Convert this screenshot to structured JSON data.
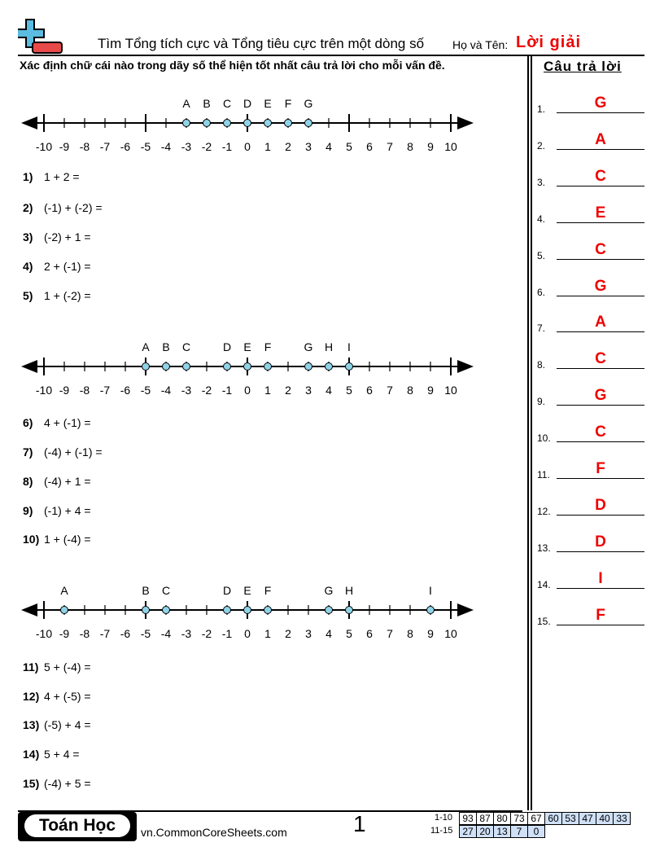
{
  "header": {
    "title": "Tìm Tổng tích cực và Tổng tiêu cực trên một dòng số",
    "name_label": "Họ và Tên:",
    "name_value": "Lời giải"
  },
  "instructions": "Xác định chữ cái nào trong dãy số thể hiện tốt nhất câu trả lời cho mỗi vấn đề.",
  "answer_header": "Câu trả lời",
  "number_lines": [
    {
      "ticks": [
        -10,
        -9,
        -8,
        -7,
        -6,
        -5,
        -4,
        -3,
        -2,
        -1,
        0,
        1,
        2,
        3,
        4,
        5,
        6,
        7,
        8,
        9,
        10
      ],
      "points": [
        {
          "label": "A",
          "value": -3
        },
        {
          "label": "B",
          "value": -2
        },
        {
          "label": "C",
          "value": -1
        },
        {
          "label": "D",
          "value": 0
        },
        {
          "label": "E",
          "value": 1
        },
        {
          "label": "F",
          "value": 2
        },
        {
          "label": "G",
          "value": 3
        }
      ]
    },
    {
      "ticks": [
        -10,
        -9,
        -8,
        -7,
        -6,
        -5,
        -4,
        -3,
        -2,
        -1,
        0,
        1,
        2,
        3,
        4,
        5,
        6,
        7,
        8,
        9,
        10
      ],
      "points": [
        {
          "label": "A",
          "value": -5
        },
        {
          "label": "B",
          "value": -4
        },
        {
          "label": "C",
          "value": -3
        },
        {
          "label": "D",
          "value": -1
        },
        {
          "label": "E",
          "value": 0
        },
        {
          "label": "F",
          "value": 1
        },
        {
          "label": "G",
          "value": 3
        },
        {
          "label": "H",
          "value": 4
        },
        {
          "label": "I",
          "value": 5
        }
      ]
    },
    {
      "ticks": [
        -10,
        -9,
        -8,
        -7,
        -6,
        -5,
        -4,
        -3,
        -2,
        -1,
        0,
        1,
        2,
        3,
        4,
        5,
        6,
        7,
        8,
        9,
        10
      ],
      "points": [
        {
          "label": "A",
          "value": -9
        },
        {
          "label": "B",
          "value": -5
        },
        {
          "label": "C",
          "value": -4
        },
        {
          "label": "D",
          "value": -1
        },
        {
          "label": "E",
          "value": 0
        },
        {
          "label": "F",
          "value": 1
        },
        {
          "label": "G",
          "value": 4
        },
        {
          "label": "H",
          "value": 5
        },
        {
          "label": "I",
          "value": 9
        }
      ]
    }
  ],
  "questions": [
    {
      "num": "1)",
      "text": "1 + 2 ="
    },
    {
      "num": "2)",
      "text": "(-1) + (-2) ="
    },
    {
      "num": "3)",
      "text": "(-2) + 1 ="
    },
    {
      "num": "4)",
      "text": "2 + (-1) ="
    },
    {
      "num": "5)",
      "text": "1 + (-2) ="
    },
    {
      "num": "6)",
      "text": "4 + (-1) ="
    },
    {
      "num": "7)",
      "text": "(-4) + (-1) ="
    },
    {
      "num": "8)",
      "text": "(-4) + 1 ="
    },
    {
      "num": "9)",
      "text": "(-1) + 4 ="
    },
    {
      "num": "10)",
      "text": "1 + (-4) ="
    },
    {
      "num": "11)",
      "text": "5 + (-4) ="
    },
    {
      "num": "12)",
      "text": "4 + (-5) ="
    },
    {
      "num": "13)",
      "text": "(-5) + 4 ="
    },
    {
      "num": "14)",
      "text": "5 + 4 ="
    },
    {
      "num": "15)",
      "text": "(-4) + 5 ="
    }
  ],
  "answers": [
    {
      "num": "1.",
      "value": "G"
    },
    {
      "num": "2.",
      "value": "A"
    },
    {
      "num": "3.",
      "value": "C"
    },
    {
      "num": "4.",
      "value": "E"
    },
    {
      "num": "5.",
      "value": "C"
    },
    {
      "num": "6.",
      "value": "G"
    },
    {
      "num": "7.",
      "value": "A"
    },
    {
      "num": "8.",
      "value": "C"
    },
    {
      "num": "9.",
      "value": "G"
    },
    {
      "num": "10.",
      "value": "C"
    },
    {
      "num": "11.",
      "value": "F"
    },
    {
      "num": "12.",
      "value": "D"
    },
    {
      "num": "13.",
      "value": "D"
    },
    {
      "num": "14.",
      "value": "I"
    },
    {
      "num": "15.",
      "value": "F"
    }
  ],
  "footer": {
    "brand": "Toán Học",
    "site": "vn.CommonCoreSheets.com",
    "page": "1",
    "score_rows": [
      {
        "label": "1-10",
        "values": [
          "93",
          "87",
          "80",
          "73",
          "67",
          "60",
          "53",
          "47",
          "40",
          "33"
        ]
      },
      {
        "label": "11-15",
        "values": [
          "27",
          "20",
          "13",
          "7",
          "0"
        ]
      }
    ]
  },
  "colors": {
    "answer": "#e00000",
    "point_fill": "#8fd3e8",
    "score_highlight": "#cfe0f7"
  }
}
